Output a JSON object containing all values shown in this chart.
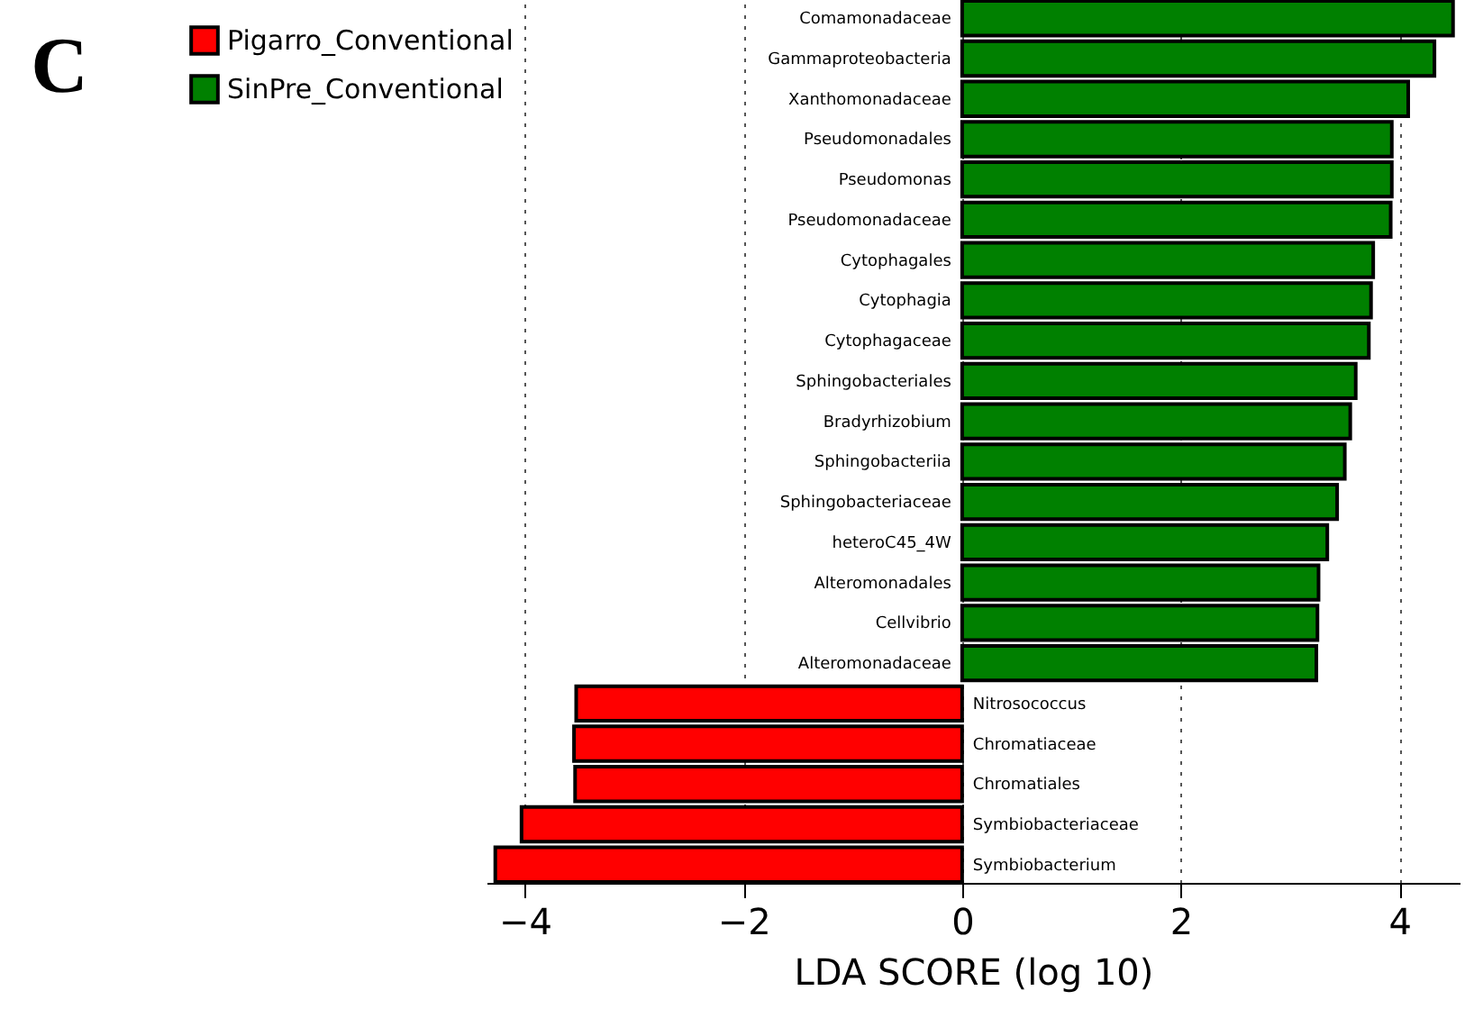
{
  "chart_data": {
    "type": "bar",
    "orientation": "horizontal",
    "categories": [
      "Comamonadaceae",
      "Gammaproteobacteria",
      "Xanthomonadaceae",
      "Pseudomonadales",
      "Pseudomonas",
      "Pseudomonadaceae",
      "Cytophagales",
      "Cytophagia",
      "Cytophagaceae",
      "Sphingobacteriales",
      "Bradyrhizobium",
      "Sphingobacteriia",
      "Sphingobacteriaceae",
      "heteroC45_4W",
      "Alteromonadales",
      "Cellvibrio",
      "Alteromonadaceae",
      "Nitrosococcus",
      "Chromatiaceae",
      "Chromatiales",
      "Symbiobacteriaceae",
      "Symbiobacterium"
    ],
    "series": [
      {
        "name": "Pigarro_Conventional",
        "color": "#ff0000",
        "values": [
          null,
          null,
          null,
          null,
          null,
          null,
          null,
          null,
          null,
          null,
          null,
          null,
          null,
          null,
          null,
          null,
          null,
          -3.53,
          -3.55,
          -3.54,
          -4.03,
          -4.27
        ]
      },
      {
        "name": "SinPre_Conventional",
        "color": "#008000",
        "values": [
          4.49,
          4.32,
          4.08,
          3.93,
          3.93,
          3.92,
          3.76,
          3.74,
          3.72,
          3.6,
          3.55,
          3.5,
          3.43,
          3.34,
          3.26,
          3.25,
          3.24,
          null,
          null,
          null,
          null,
          null
        ]
      }
    ],
    "xlabel": "LDA SCORE (log 10)",
    "xlim": [
      -4.35,
      4.55
    ],
    "xticks": [
      {
        "value": -4,
        "label": "−4"
      },
      {
        "value": -2,
        "label": "−2"
      },
      0,
      2,
      4
    ],
    "grid": "x",
    "legend": "top left",
    "annotations": [
      "C"
    ]
  }
}
